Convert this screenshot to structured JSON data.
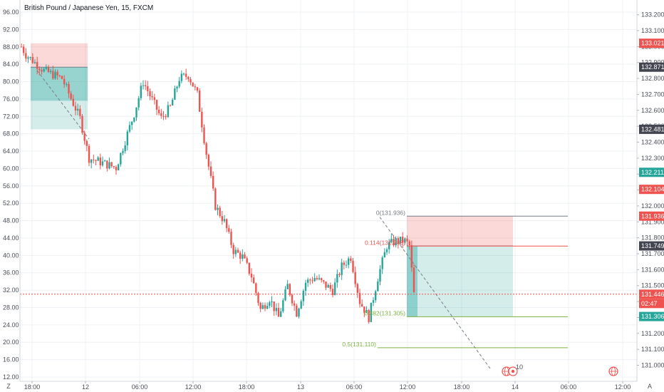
{
  "header": {
    "title": "British Pound / Japanese Yen, 15, FXCM"
  },
  "corner": {
    "left": "Z",
    "right": "A"
  },
  "colors": {
    "up": "#26a69a",
    "down": "#ef5350",
    "fib": "#7cb342",
    "grid": "#eef0f4",
    "axis_text": "#4a4e59",
    "neutral_badge": "#434651"
  },
  "left_axis": {
    "ticks": [
      "96.00",
      "92.00",
      "88.00",
      "84.00",
      "80.00",
      "76.00",
      "72.00",
      "68.00",
      "64.00",
      "60.00",
      "56.00",
      "52.00",
      "48.00",
      "44.00",
      "40.00",
      "36.00",
      "32.00",
      "28.00",
      "24.00",
      "20.00",
      "16.00",
      "12.00"
    ]
  },
  "right_axis": {
    "ticks": [
      "133.200",
      "133.100",
      "133.000",
      "132.900",
      "132.800",
      "132.700",
      "132.600",
      "132.500",
      "132.400",
      "132.300",
      "132.200",
      "132.100",
      "132.000",
      "131.900",
      "131.800",
      "131.700",
      "131.600",
      "131.500",
      "131.400",
      "131.300",
      "131.200",
      "131.100",
      "131.000"
    ],
    "badges": [
      {
        "text": "133.021",
        "color": "#ef5350"
      },
      {
        "text": "132.871",
        "color": "#434651"
      },
      {
        "text": "132.481",
        "color": "#434651"
      },
      {
        "text": "132.211",
        "color": "#26a69a"
      },
      {
        "text": "132.104",
        "color": "#ef5350"
      },
      {
        "text": "131.936",
        "color": "#ef5350"
      },
      {
        "text": "131.749",
        "color": "#434651"
      },
      {
        "text": "131.446",
        "color": "#ef5350"
      },
      {
        "text": "02:47",
        "color": "#ef5350"
      },
      {
        "text": "131.306",
        "color": "#26a69a"
      }
    ]
  },
  "time_axis": {
    "ticks": [
      "18:00",
      "12",
      "06:00",
      "12:00",
      "18:00",
      "13",
      "06:00",
      "12:00",
      "18:00",
      "14",
      "06:00",
      "12:00"
    ]
  },
  "fib_labels": [
    {
      "text": "0(131.936)",
      "color": "#787b86"
    },
    {
      "text": "0.114(131.748)",
      "color": "#ef5350"
    },
    {
      "text": "0.382(131.305)",
      "color": "#7cb342"
    },
    {
      "text": "0.5(131.110)",
      "color": "#7cb342"
    }
  ],
  "events": {
    "count": "10",
    "icon": "globe-icon"
  },
  "chart_data": {
    "type": "candlestick",
    "title": "British Pound / Japanese Yen, 15, FXCM",
    "symbol": "GBPJPY",
    "interval": "15",
    "source": "FXCM",
    "price_range": [
      131.0,
      133.25
    ],
    "oscillator_range": [
      12,
      96
    ],
    "last_price": 131.446,
    "countdown": "02:47",
    "price_levels": [
      133.021,
      132.871,
      132.481,
      132.211,
      132.104,
      131.936,
      131.749,
      131.446,
      131.306
    ],
    "fibonacci": [
      {
        "level": 0,
        "price": 131.936
      },
      {
        "level": 0.114,
        "price": 131.748
      },
      {
        "level": 0.382,
        "price": 131.305
      },
      {
        "level": 0.5,
        "price": 131.11
      }
    ],
    "short_positions": [
      {
        "entry": 132.871,
        "stop": 133.021,
        "target": 132.481
      },
      {
        "entry": 131.749,
        "stop": 131.936,
        "target": 131.306
      }
    ],
    "close_path": [
      {
        "time": "17:30",
        "close": 133.0
      },
      {
        "time": "18:00",
        "close": 132.95
      },
      {
        "time": "20:00",
        "close": 132.85
      },
      {
        "time": "22:00",
        "close": 132.8
      },
      {
        "time": "00:00",
        "close": 132.55
      },
      {
        "time": "01:00",
        "close": 132.3
      },
      {
        "time": "02:00",
        "close": 132.28
      },
      {
        "time": "04:00",
        "close": 132.24
      },
      {
        "time": "06:00",
        "close": 132.58
      },
      {
        "time": "07:00",
        "close": 132.78
      },
      {
        "time": "09:00",
        "close": 132.55
      },
      {
        "time": "10:00",
        "close": 132.62
      },
      {
        "time": "11:00",
        "close": 132.8
      },
      {
        "time": "12:00",
        "close": 132.82
      },
      {
        "time": "13:00",
        "close": 132.7
      },
      {
        "time": "14:00",
        "close": 132.33
      },
      {
        "time": "15:00",
        "close": 132.0
      },
      {
        "time": "16:00",
        "close": 131.9
      },
      {
        "time": "17:00",
        "close": 131.72
      },
      {
        "time": "18:00",
        "close": 131.68
      },
      {
        "time": "19:00",
        "close": 131.56
      },
      {
        "time": "20:00",
        "close": 131.35
      },
      {
        "time": "21:00",
        "close": 131.42
      },
      {
        "time": "22:00",
        "close": 131.3
      },
      {
        "time": "23:00",
        "close": 131.5
      },
      {
        "time": "00:00",
        "close": 131.33
      },
      {
        "time": "01:00",
        "close": 131.52
      },
      {
        "time": "02:00",
        "close": 131.55
      },
      {
        "time": "04:00",
        "close": 131.47
      },
      {
        "time": "05:00",
        "close": 131.62
      },
      {
        "time": "06:00",
        "close": 131.68
      },
      {
        "time": "07:00",
        "close": 131.4
      },
      {
        "time": "08:00",
        "close": 131.3
      },
      {
        "time": "09:00",
        "close": 131.55
      },
      {
        "time": "10:00",
        "close": 131.75
      },
      {
        "time": "11:00",
        "close": 131.78
      },
      {
        "time": "12:00",
        "close": 131.78
      },
      {
        "time": "12:30",
        "close": 131.75
      },
      {
        "time": "13:00",
        "close": 131.446
      }
    ]
  }
}
